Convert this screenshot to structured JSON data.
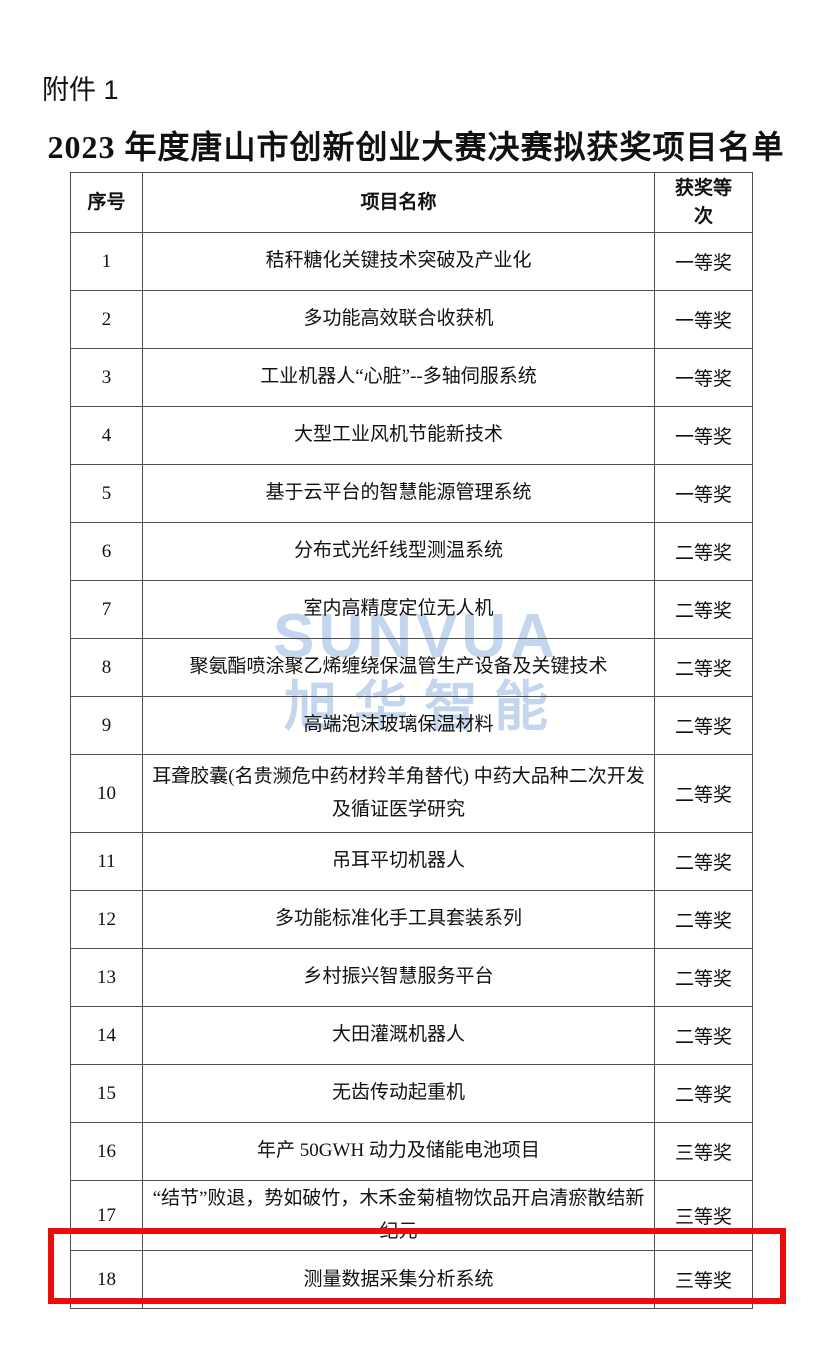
{
  "page": {
    "attachment_label": "附件 1",
    "title": "2023 年度唐山市创新创业大赛决赛拟获奖项目名单"
  },
  "watermark": {
    "brand_en": "SUNVUA",
    "brand_cn": "旭华智能",
    "color": "#c3d6ee"
  },
  "table": {
    "headers": {
      "index": "序号",
      "name": "项目名称",
      "award": "获奖等次"
    },
    "rows": [
      {
        "index": "1",
        "name": "秸秆糖化关键技术突破及产业化",
        "award": "一等奖"
      },
      {
        "index": "2",
        "name": "多功能高效联合收获机",
        "award": "一等奖"
      },
      {
        "index": "3",
        "name": "工业机器人“心脏”--多轴伺服系统",
        "award": "一等奖"
      },
      {
        "index": "4",
        "name": "大型工业风机节能新技术",
        "award": "一等奖"
      },
      {
        "index": "5",
        "name": "基于云平台的智慧能源管理系统",
        "award": "一等奖"
      },
      {
        "index": "6",
        "name": "分布式光纤线型测温系统",
        "award": "二等奖"
      },
      {
        "index": "7",
        "name": "室内高精度定位无人机",
        "award": "二等奖"
      },
      {
        "index": "8",
        "name": "聚氨酯喷涂聚乙烯缠绕保温管生产设备及关键技术",
        "award": "二等奖"
      },
      {
        "index": "9",
        "name": "高端泡沫玻璃保温材料",
        "award": "二等奖"
      },
      {
        "index": "10",
        "name": "耳聋胶囊(名贵濒危中药材羚羊角替代) 中药大品种二次开发及循证医学研究",
        "award": "二等奖"
      },
      {
        "index": "11",
        "name": "吊耳平切机器人",
        "award": "二等奖"
      },
      {
        "index": "12",
        "name": "多功能标准化手工具套装系列",
        "award": "二等奖"
      },
      {
        "index": "13",
        "name": "乡村振兴智慧服务平台",
        "award": "二等奖"
      },
      {
        "index": "14",
        "name": "大田灌溉机器人",
        "award": "二等奖"
      },
      {
        "index": "15",
        "name": "无齿传动起重机",
        "award": "二等奖"
      },
      {
        "index": "16",
        "name": "年产 50GWH 动力及储能电池项目",
        "award": "三等奖"
      },
      {
        "index": "17",
        "name": "“结节”败退，势如破竹，木禾金菊植物饮品开启清瘀散结新纪元",
        "award": "三等奖"
      },
      {
        "index": "18",
        "name": "测量数据采集分析系统",
        "award": "三等奖"
      }
    ]
  },
  "highlight": {
    "row": 18,
    "color": "#ee0b0b"
  }
}
